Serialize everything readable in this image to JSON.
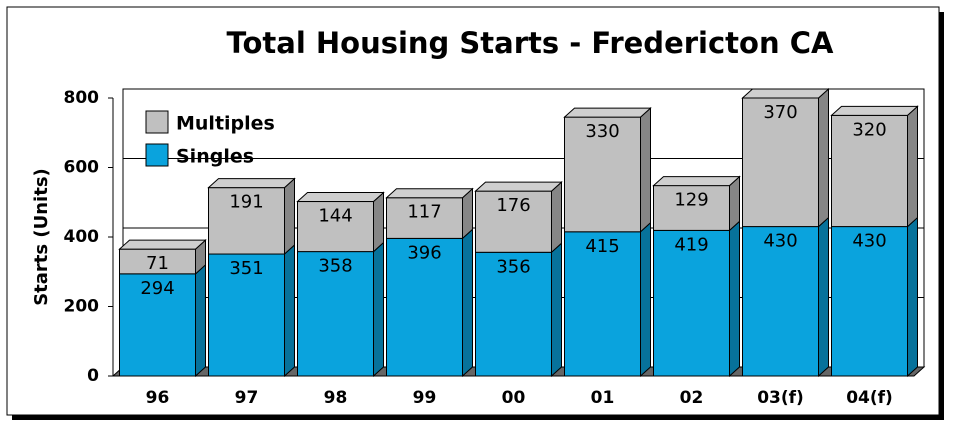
{
  "chart_data": {
    "type": "bar",
    "stacked": true,
    "title": "Total Housing Starts - Fredericton CA",
    "y_label": "Starts (Units)",
    "categories": [
      "96",
      "97",
      "98",
      "99",
      "00",
      "01",
      "02",
      "03(f)",
      "04(f)"
    ],
    "series": [
      {
        "name": "Singles",
        "color": "#0aa3dd",
        "values": [
          294,
          351,
          358,
          396,
          356,
          415,
          419,
          430,
          430
        ]
      },
      {
        "name": "Multiples",
        "color": "#c0c0c0",
        "values": [
          71,
          191,
          144,
          117,
          176,
          330,
          129,
          370,
          320
        ]
      }
    ],
    "ylim": [
      0,
      800
    ],
    "yticks": [
      0,
      200,
      400,
      600,
      800
    ],
    "grid": true,
    "legend": "upper left"
  }
}
